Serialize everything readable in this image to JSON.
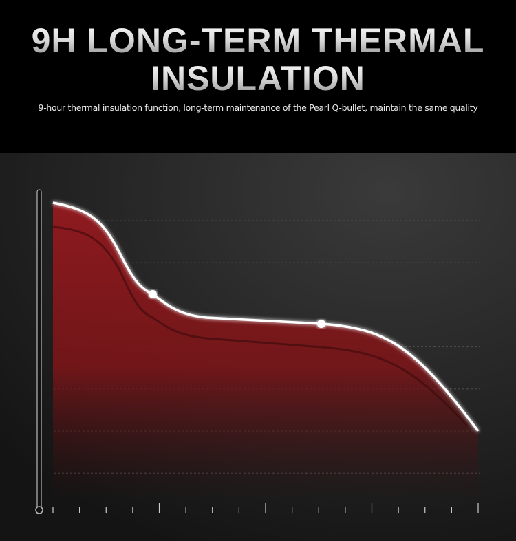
{
  "header": {
    "title_lines": [
      "9H LONG-TERM THERMAL",
      "INSULATION"
    ],
    "subtitle": "9-hour thermal insulation function, long-term maintenance of the Pearl Q-bullet, maintain the same quality"
  }
}
